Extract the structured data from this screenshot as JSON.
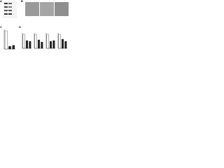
{
  "panels": {
    "A": {
      "label": "A"
    },
    "B": {
      "label": "B"
    },
    "C": {
      "label": "C",
      "values": [
        1,
        0.15,
        0.2
      ]
    },
    "D": {
      "label": "D",
      "charts": [
        {
          "values": [
            1,
            0.55,
            0.5
          ]
        },
        {
          "values": [
            1,
            0.6,
            0.45
          ]
        },
        {
          "values": [
            1,
            0.5,
            0.55
          ]
        },
        {
          "values": [
            1,
            0.65,
            0.5
          ]
        }
      ]
    }
  }
}
